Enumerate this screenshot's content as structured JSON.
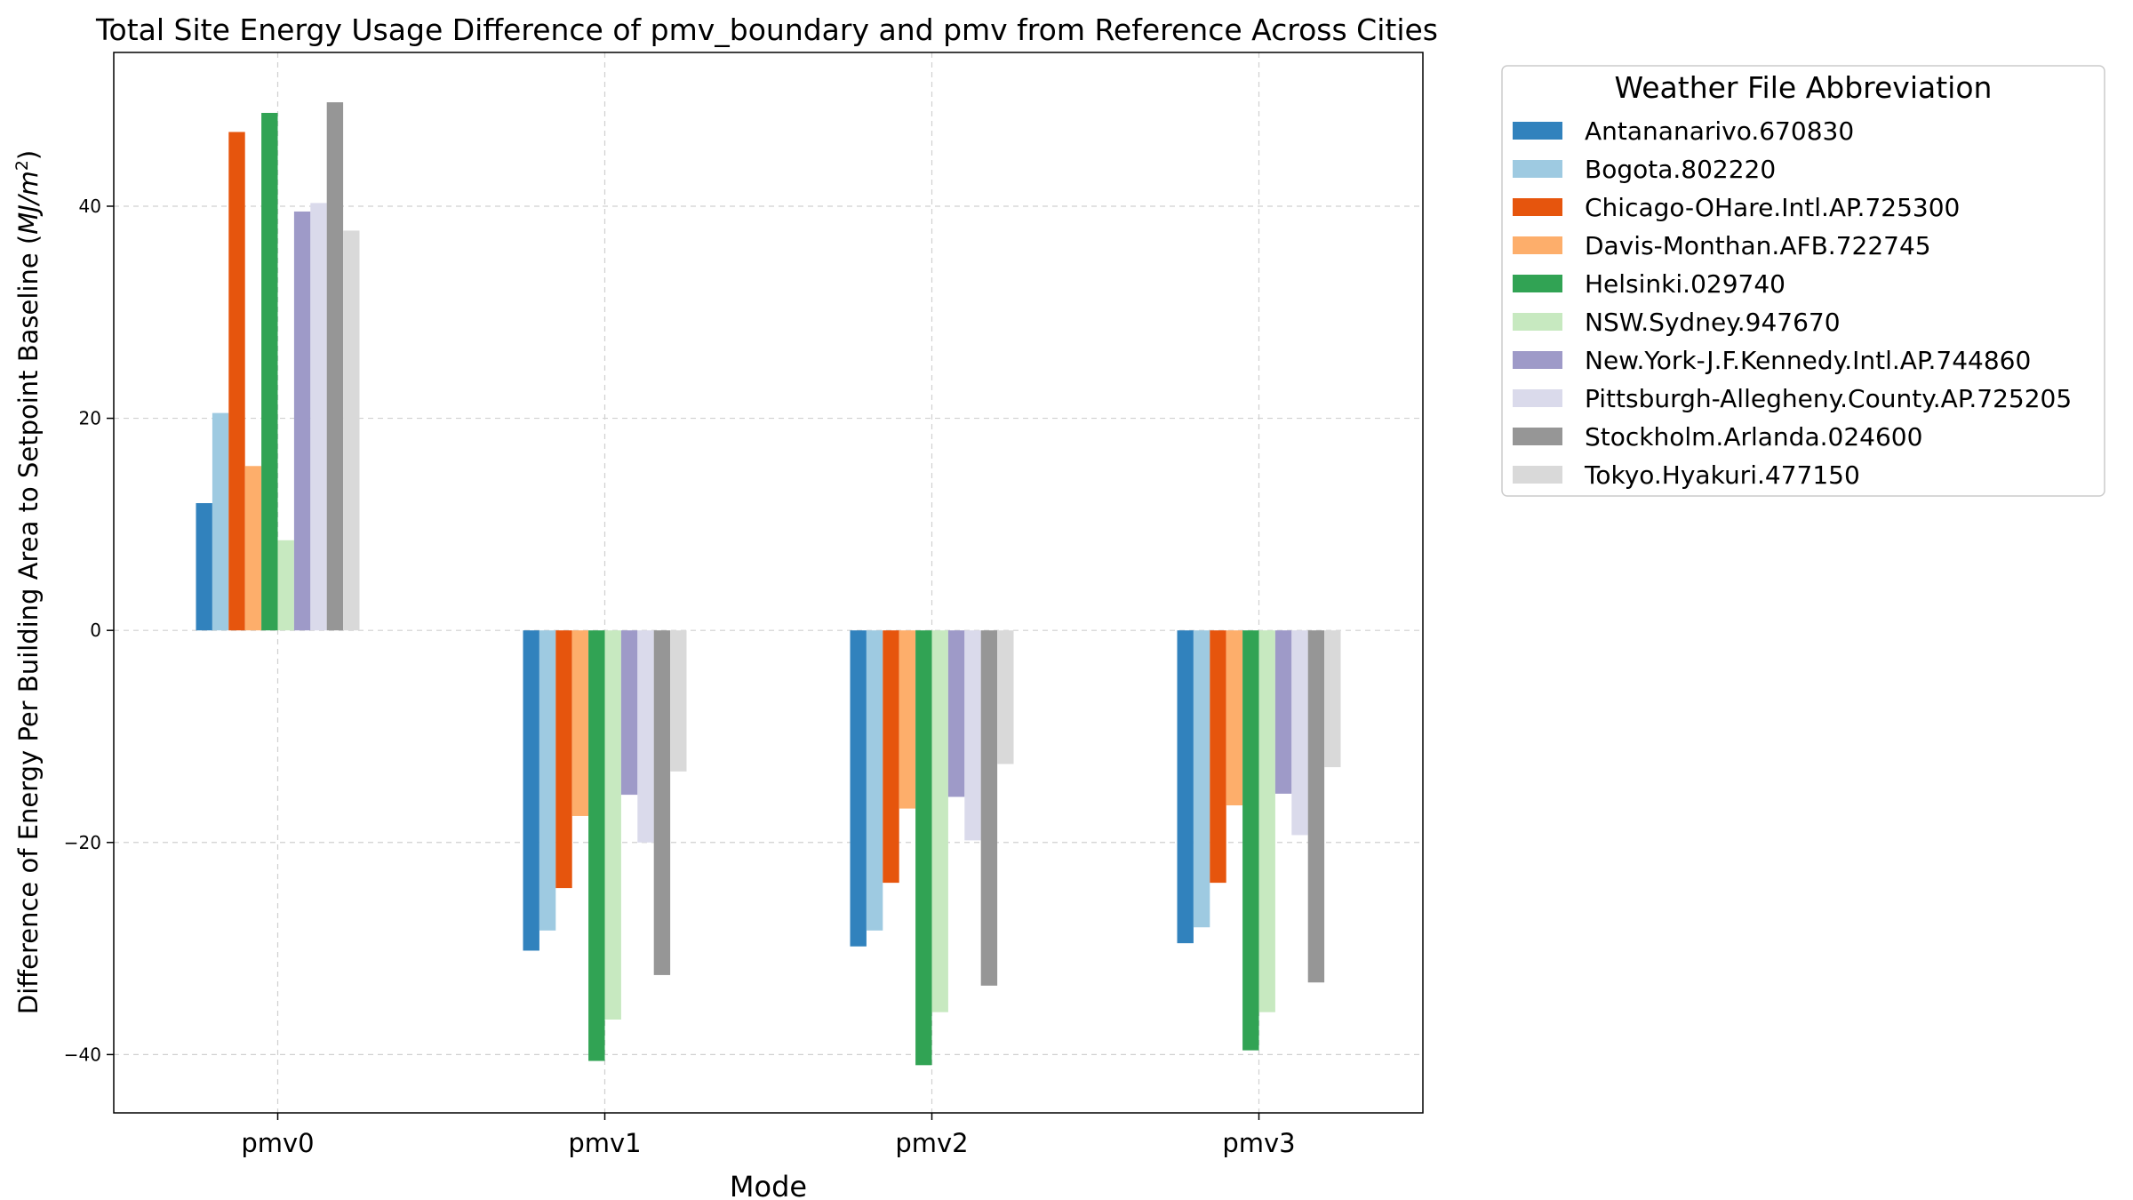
{
  "chart_data": {
    "type": "bar",
    "title": "Total Site Energy Usage Difference of pmv_boundary and pmv from Reference Across Cities",
    "xlabel": "Mode",
    "ylabel_text": "Difference of Energy Per Building Area to Setpoint Baseline (",
    "ylabel_unit": "MJ/m",
    "ylabel_exp": "2",
    "ylabel_close": ")",
    "ylim": [
      -45.5,
      54.5
    ],
    "yticks": [
      -40,
      -20,
      0,
      20,
      40
    ],
    "grid": true,
    "legend_position": "outside-right",
    "legend_title": "Weather File Abbreviation",
    "categories": [
      "pmv0",
      "pmv1",
      "pmv2",
      "pmv3"
    ],
    "series": [
      {
        "name": "Antananarivo.670830",
        "color": "#3182bd",
        "values": [
          12.0,
          -30.2,
          -29.8,
          -29.5
        ]
      },
      {
        "name": "Bogota.802220",
        "color": "#9ecae1",
        "values": [
          20.5,
          -28.3,
          -28.3,
          -28.0
        ]
      },
      {
        "name": "Chicago-OHare.Intl.AP.725300",
        "color": "#e6550d",
        "values": [
          47.0,
          -24.3,
          -23.8,
          -23.8
        ]
      },
      {
        "name": "Davis-Monthan.AFB.722745",
        "color": "#fdae6b",
        "values": [
          15.5,
          -17.5,
          -16.8,
          -16.5
        ]
      },
      {
        "name": "Helsinki.029740",
        "color": "#31a354",
        "values": [
          48.8,
          -40.6,
          -41.0,
          -39.6
        ]
      },
      {
        "name": "NSW.Sydney.947670",
        "color": "#c7e9c0",
        "values": [
          8.5,
          -36.7,
          -36.0,
          -36.0
        ]
      },
      {
        "name": "New.York-J.F.Kennedy.Intl.AP.744860",
        "color": "#9e9ac8",
        "values": [
          39.5,
          -15.5,
          -15.7,
          -15.4
        ]
      },
      {
        "name": "Pittsburgh-Allegheny.County.AP.725205",
        "color": "#dadaeb",
        "values": [
          40.3,
          -20.0,
          -19.8,
          -19.3
        ]
      },
      {
        "name": "Stockholm.Arlanda.024600",
        "color": "#969696",
        "values": [
          49.8,
          -32.5,
          -33.5,
          -33.2
        ]
      },
      {
        "name": "Tokyo.Hyakuri.477150",
        "color": "#d9d9d9",
        "values": [
          37.7,
          -13.3,
          -12.6,
          -12.9
        ]
      }
    ]
  }
}
